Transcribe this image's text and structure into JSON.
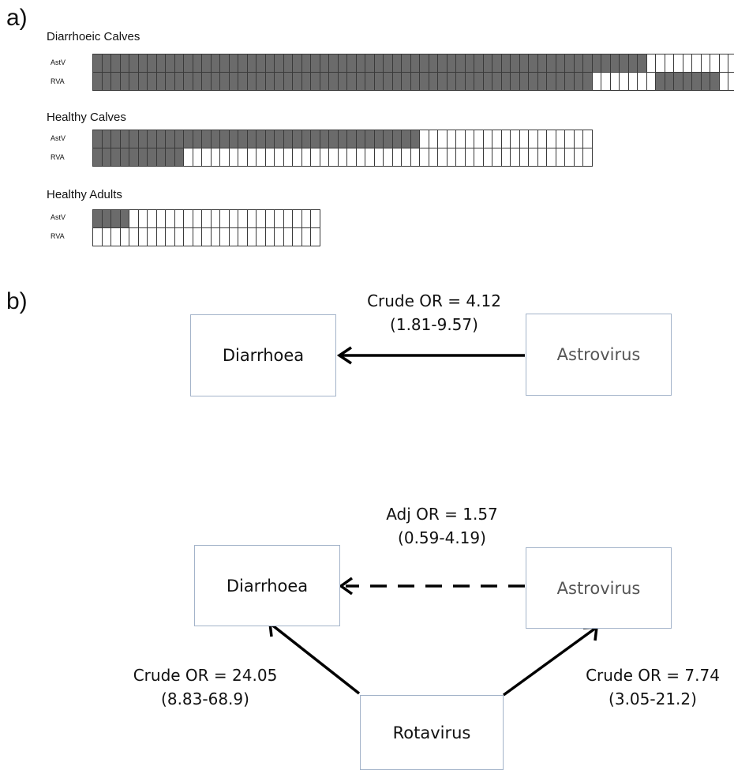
{
  "panel_a": {
    "letter": "a)",
    "groups": [
      {
        "title": "Diarrhoeic Calves",
        "total": 71,
        "rows": [
          {
            "label": "AstV",
            "segments": [
              [
                1,
                61
              ],
              [
                0,
                10
              ]
            ]
          },
          {
            "label": "RVA",
            "segments": [
              [
                1,
                55
              ],
              [
                0,
                7
              ],
              [
                1,
                7
              ],
              [
                0,
                2
              ]
            ]
          }
        ]
      },
      {
        "title": "Healthy Calves",
        "total": 55,
        "rows": [
          {
            "label": "AstV",
            "segments": [
              [
                1,
                36
              ],
              [
                0,
                19
              ]
            ]
          },
          {
            "label": "RVA",
            "segments": [
              [
                1,
                10
              ],
              [
                0,
                45
              ]
            ]
          }
        ]
      },
      {
        "title": "Healthy Adults",
        "total": 25,
        "rows": [
          {
            "label": "AstV",
            "segments": [
              [
                1,
                4
              ],
              [
                0,
                21
              ]
            ]
          },
          {
            "label": "RVA",
            "segments": [
              [
                0,
                25
              ]
            ]
          }
        ]
      }
    ]
  },
  "panel_b": {
    "letter": "b)",
    "top": {
      "diarrhoea": "Diarrhoea",
      "astrovirus": "Astrovirus",
      "or_line1": "Crude OR = 4.12",
      "or_line2": "(1.81-9.57)"
    },
    "bottom": {
      "diarrhoea": "Diarrhoea",
      "astrovirus": "Astrovirus",
      "rotavirus": "Rotavirus",
      "adj_line1": "Adj OR = 1.57",
      "adj_line2": "(0.59-4.19)",
      "left_line1": "Crude OR = 24.05",
      "left_line2": "(8.83-68.9)",
      "right_line1": "Crude OR = 7.74",
      "right_line2": "(3.05-21.2)"
    }
  }
}
